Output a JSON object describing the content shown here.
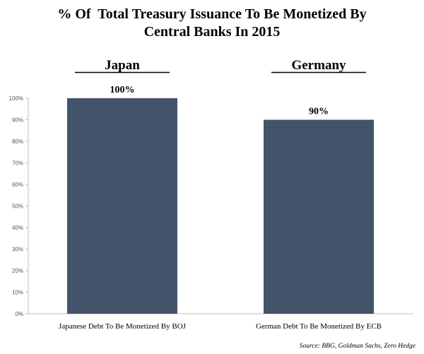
{
  "chart_data": {
    "type": "bar",
    "title": "% Of  Total Treasury Issuance To Be Monetized By",
    "subtitle": "Central Banks In 2015",
    "categories": [
      "Japanese Debt To Be Monetized By BOJ",
      "German Debt To Be Monetized By ECB"
    ],
    "group_headers": [
      "Japan",
      "Germany"
    ],
    "series": [
      {
        "values": [
          100,
          90
        ]
      }
    ],
    "data_labels": [
      "100%",
      "90%"
    ],
    "yticks": [
      "0%",
      "10%",
      "20%",
      "30%",
      "40%",
      "50%",
      "60%",
      "70%",
      "80%",
      "90%",
      "100%"
    ],
    "ylim": [
      0,
      100
    ],
    "xlabel": "",
    "ylabel": "",
    "grid": false,
    "legend": "none",
    "source": "Source: BBG, Goldman Sachs, Zero Hedge",
    "colors": {
      "bar": "#435369",
      "axis": "#bfbfbf",
      "text": "#000000",
      "tick_text": "#555555"
    }
  }
}
